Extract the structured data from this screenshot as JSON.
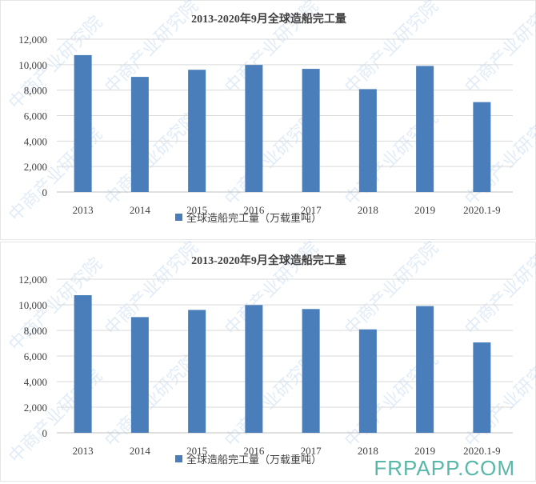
{
  "watermark": "中商产业研究院",
  "site_watermark": "FRPAPP.COM",
  "colors": {
    "bar": "#4a7ebb",
    "grid": "#d9d9d9",
    "text": "#404040"
  },
  "chart_data": [
    {
      "type": "bar",
      "title": "2013-2020年9月全球造船完工量",
      "categories": [
        "2013",
        "2014",
        "2015",
        "2016",
        "2017",
        "2018",
        "2019",
        "2020.1-9"
      ],
      "series": [
        {
          "name": "全球造船完工量（万载重吨）",
          "values": [
            10750,
            9040,
            9600,
            9980,
            9670,
            8080,
            9900,
            7060
          ]
        }
      ],
      "yticks": [
        "0",
        "2,000",
        "4,000",
        "6,000",
        "8,000",
        "10,000",
        "12,000"
      ],
      "ylim": [
        0,
        12000
      ],
      "xlabel": "",
      "ylabel": "",
      "grid": true,
      "legend": "bottom"
    },
    {
      "type": "bar",
      "title": "2013-2020年9月全球造船完工量",
      "categories": [
        "2013",
        "2014",
        "2015",
        "2016",
        "2017",
        "2018",
        "2019",
        "2020.1-9"
      ],
      "series": [
        {
          "name": "全球造船完工量（万载重吨）",
          "values": [
            10750,
            9040,
            9600,
            9980,
            9670,
            8080,
            9900,
            7060
          ]
        }
      ],
      "yticks": [
        "0",
        "2,000",
        "4,000",
        "6,000",
        "8,000",
        "10,000",
        "12,000"
      ],
      "ylim": [
        0,
        12000
      ],
      "xlabel": "",
      "ylabel": "",
      "grid": true,
      "legend": "bottom"
    }
  ]
}
